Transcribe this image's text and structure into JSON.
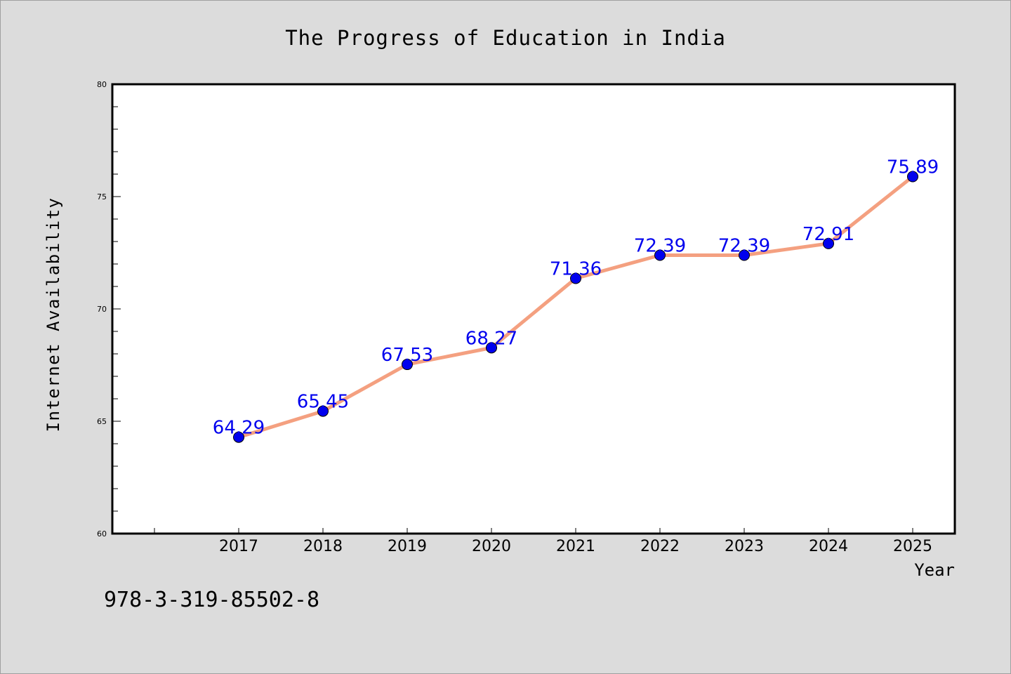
{
  "chart_data": {
    "type": "line",
    "title": "The Progress of Education in India",
    "xlabel": "Year",
    "ylabel": "Internet Availability",
    "categories": [
      "2017",
      "2018",
      "2019",
      "2020",
      "2021",
      "2022",
      "2023",
      "2024",
      "2025"
    ],
    "values": [
      64.29,
      65.45,
      67.53,
      68.27,
      71.36,
      72.39,
      72.39,
      72.91,
      75.89
    ],
    "data_labels": [
      "64.29",
      "65.45",
      "67.53",
      "68.27",
      "71.36",
      "72.39",
      "72.39",
      "72.91",
      "75.89"
    ],
    "yticks": [
      "60",
      "65",
      "70",
      "75",
      "80"
    ],
    "ylim": [
      60,
      80
    ],
    "grid": false,
    "line_color": "#f4a080",
    "marker_color": "#0000ee",
    "label_color": "#0000ee"
  },
  "footer": {
    "isbn": "978-3-319-85502-8"
  }
}
